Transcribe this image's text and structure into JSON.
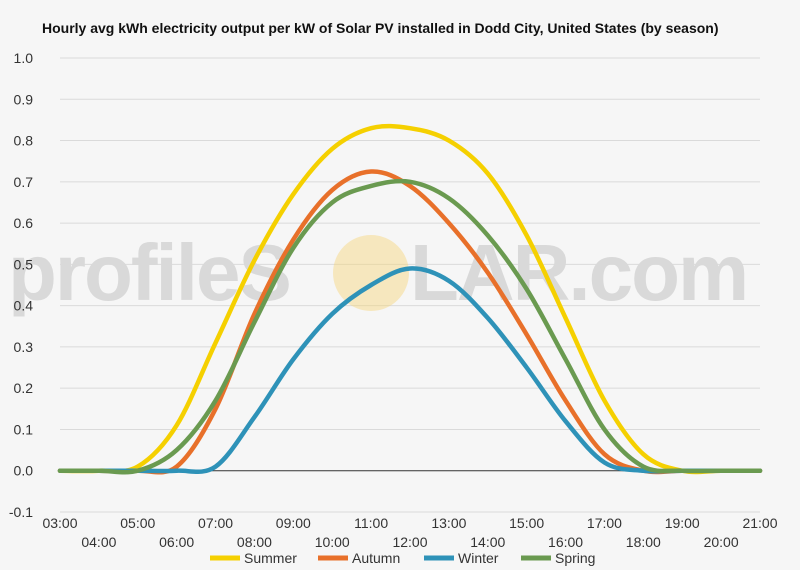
{
  "chart_data": {
    "type": "line",
    "title": "Hourly avg kWh electricity output per kW of Solar PV installed in Dodd City, United States (by season)",
    "xlabel": "",
    "ylabel": "",
    "ylim": [
      -0.1,
      1.0
    ],
    "yticks": [
      "-0.1",
      "0.0",
      "0.1",
      "0.2",
      "0.3",
      "0.4",
      "0.5",
      "0.6",
      "0.7",
      "0.8",
      "0.9",
      "1.0"
    ],
    "x": [
      "03:00",
      "04:00",
      "05:00",
      "06:00",
      "07:00",
      "08:00",
      "09:00",
      "10:00",
      "11:00",
      "12:00",
      "13:00",
      "14:00",
      "15:00",
      "16:00",
      "17:00",
      "18:00",
      "19:00",
      "20:00",
      "21:00"
    ],
    "grid": true,
    "legend_position": "bottom",
    "series": [
      {
        "name": "Summer",
        "color": "#f5d000",
        "values": [
          0.0,
          0.0,
          0.01,
          0.11,
          0.31,
          0.51,
          0.67,
          0.78,
          0.83,
          0.83,
          0.8,
          0.72,
          0.57,
          0.37,
          0.17,
          0.04,
          0.0,
          0.0,
          0.0
        ]
      },
      {
        "name": "Autumn",
        "color": "#e8702a",
        "values": [
          0.0,
          0.0,
          0.0,
          0.01,
          0.15,
          0.38,
          0.56,
          0.68,
          0.725,
          0.69,
          0.6,
          0.48,
          0.33,
          0.17,
          0.04,
          0.0,
          0.0,
          0.0,
          0.0
        ]
      },
      {
        "name": "Winter",
        "color": "#2e92b8",
        "values": [
          0.0,
          0.0,
          0.0,
          0.0,
          0.01,
          0.13,
          0.27,
          0.38,
          0.45,
          0.49,
          0.46,
          0.37,
          0.25,
          0.12,
          0.02,
          0.0,
          0.0,
          0.0,
          0.0
        ]
      },
      {
        "name": "Spring",
        "color": "#6a9a50",
        "values": [
          0.0,
          0.0,
          0.0,
          0.05,
          0.17,
          0.36,
          0.54,
          0.65,
          0.69,
          0.7,
          0.66,
          0.57,
          0.44,
          0.27,
          0.1,
          0.01,
          0.0,
          0.0,
          0.0
        ]
      }
    ]
  },
  "watermark": {
    "left": "profileS",
    "right": "LAR.com",
    "sun_color": "#f7d57a"
  }
}
